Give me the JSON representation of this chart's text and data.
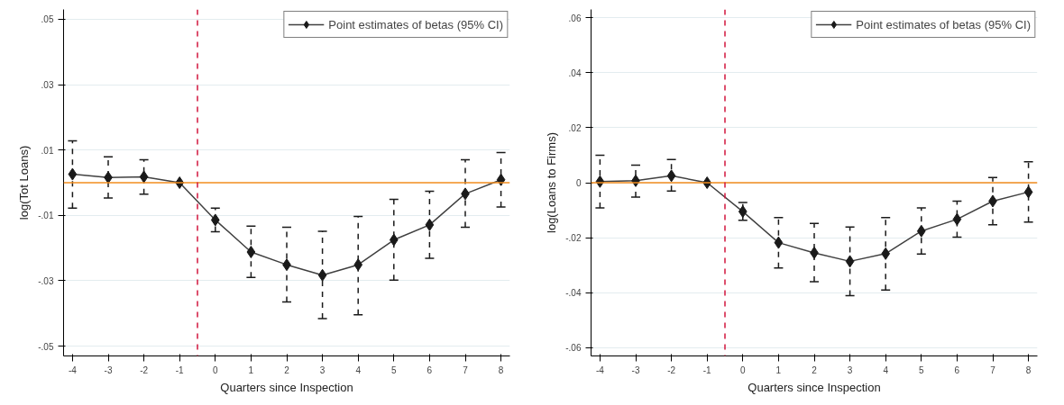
{
  "chart_data": [
    {
      "type": "line",
      "xlabel": "Quarters since Inspection",
      "ylabel": "log(Tot Loans)",
      "x": [
        -4,
        -3,
        -2,
        -1,
        0,
        1,
        2,
        3,
        4,
        5,
        6,
        7,
        8
      ],
      "series": [
        {
          "name": "Point estimates of betas (95% CI)",
          "color": "#1a1a1a",
          "values": [
            0.0026,
            0.0016,
            0.0018,
            0,
            -0.0114,
            -0.0212,
            -0.0251,
            -0.0283,
            -0.0251,
            -0.0175,
            -0.0129,
            -0.0034,
            0.0009
          ],
          "errors": [
            [
              -0.0078,
              0.0128
            ],
            [
              -0.0047,
              0.0079
            ],
            [
              -0.0035,
              0.007
            ],
            null,
            [
              -0.015,
              -0.0078
            ],
            [
              -0.029,
              -0.0133
            ],
            [
              -0.0365,
              -0.0136
            ],
            [
              -0.0416,
              -0.0149
            ],
            [
              -0.0404,
              -0.0103
            ],
            [
              -0.0298,
              -0.0051
            ],
            [
              -0.0231,
              -0.0026
            ],
            [
              -0.0136,
              0.007
            ],
            [
              -0.0074,
              0.0092
            ]
          ]
        }
      ],
      "xlim": [
        -4.25,
        8.25
      ],
      "ylim": [
        -0.053,
        0.053
      ],
      "xticks": [
        -4,
        -3,
        -2,
        -1,
        0,
        1,
        2,
        3,
        4,
        5,
        6,
        7,
        8
      ],
      "yticks": [
        {
          "value": -0.05,
          "label": "-.05"
        },
        {
          "value": -0.03,
          "label": "-.03"
        },
        {
          "value": -0.01,
          "label": "-.01"
        },
        {
          "value": 0.01,
          "label": ".01"
        },
        {
          "value": 0.03,
          "label": ".03"
        },
        {
          "value": 0.05,
          "label": ".05"
        }
      ],
      "ref_lines": [
        {
          "axis": "y",
          "value": 0,
          "color": "#f28c1e",
          "line_style": "solid"
        },
        {
          "axis": "x",
          "value": -0.5,
          "color": "#d2143c",
          "line_style": "dashed"
        }
      ],
      "grid": "y",
      "legend": "top right",
      "marker": "diamond",
      "line_style": "solid"
    },
    {
      "type": "line",
      "xlabel": "Quarters since Inspection",
      "ylabel": "log(Loans to Firms)",
      "x": [
        -4,
        -3,
        -2,
        -1,
        0,
        1,
        2,
        3,
        4,
        5,
        6,
        7,
        8
      ],
      "series": [
        {
          "name": "Point estimates of betas (95% CI)",
          "color": "#1a1a1a",
          "values": [
            0.0004,
            0.0007,
            0.0025,
            0,
            -0.0105,
            -0.0218,
            -0.0255,
            -0.0286,
            -0.0258,
            -0.0176,
            -0.0133,
            -0.0067,
            -0.0034
          ],
          "errors": [
            [
              -0.0092,
              0.01
            ],
            [
              -0.0052,
              0.0064
            ],
            [
              -0.003,
              0.0084
            ],
            null,
            [
              -0.0137,
              -0.0072
            ],
            [
              -0.031,
              -0.0127
            ],
            [
              -0.036,
              -0.0148
            ],
            [
              -0.0411,
              -0.0161
            ],
            [
              -0.039,
              -0.0127
            ],
            [
              -0.0259,
              -0.0092
            ],
            [
              -0.0198,
              -0.0067
            ],
            [
              -0.0153,
              0.0019
            ],
            [
              -0.0143,
              0.0076
            ]
          ]
        }
      ],
      "xlim": [
        -4.25,
        8.25
      ],
      "ylim": [
        -0.063,
        0.063
      ],
      "xticks": [
        -4,
        -3,
        -2,
        -1,
        0,
        1,
        2,
        3,
        4,
        5,
        6,
        7,
        8
      ],
      "yticks": [
        {
          "value": -0.06,
          "label": "-.06"
        },
        {
          "value": -0.04,
          "label": "-.04"
        },
        {
          "value": -0.02,
          "label": "-.02"
        },
        0,
        {
          "value": 0.02,
          "label": ".02"
        },
        {
          "value": 0.04,
          "label": ".04"
        },
        {
          "value": 0.06,
          "label": ".06"
        }
      ],
      "ref_lines": [
        {
          "axis": "y",
          "value": 0,
          "color": "#f28c1e",
          "line_style": "solid"
        },
        {
          "axis": "x",
          "value": -0.5,
          "color": "#d2143c",
          "line_style": "dashed"
        }
      ],
      "grid": "y",
      "legend": "top right",
      "marker": "diamond",
      "line_style": "solid"
    }
  ]
}
